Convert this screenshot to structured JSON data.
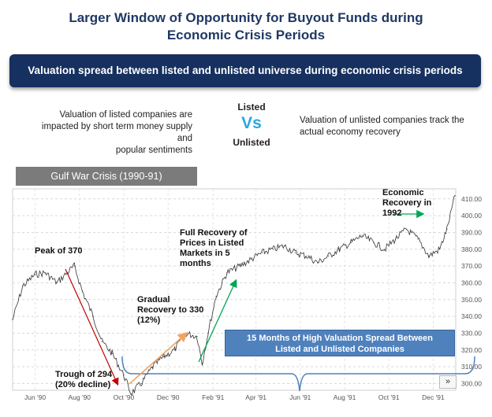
{
  "header": {
    "title_line1": "Larger Window of Opportunity for Buyout Funds during",
    "title_line2": "Economic Crisis Periods",
    "banner": "Valuation spread between listed and unlisted universe during economic crisis periods"
  },
  "compare": {
    "left_line1": "Valuation of listed companies are",
    "left_line2": "impacted by short term money supply and",
    "left_line3": "popular sentiments",
    "listed": "Listed",
    "vs": "Vs",
    "unlisted": "Unlisted",
    "right_line1": "Valuation of unlisted companies track the",
    "right_line2": "actual economy recovery"
  },
  "crisis_label": "Gulf War Crisis (1990-91)",
  "annotations": {
    "peak": "Peak of 370",
    "trough_l1": "Trough of 294",
    "trough_l2": "(20% decline)",
    "gradual_l1": "Gradual",
    "gradual_l2": "Recovery to 330",
    "gradual_l3": "(12%)",
    "full_l1": "Full Recovery of",
    "full_l2": "Prices in Listed",
    "full_l3": "Markets in 5",
    "full_l4": "months",
    "econ_l1": "Economic",
    "econ_l2": "Recovery in",
    "econ_l3": "1992",
    "spread_l1": "15 Months of High Valuation Spread Between",
    "spread_l2": "Listed and Unlisted Companies",
    "scroll": "»"
  },
  "chart_data": {
    "type": "line",
    "series": [
      {
        "x": [
          "1990-05-01",
          "1990-05-15",
          "1990-06-01",
          "1990-06-15",
          "1990-07-01",
          "1990-07-15",
          "1990-07-25",
          "1990-08-05",
          "1990-08-20",
          "1990-09-01",
          "1990-09-15",
          "1990-10-01",
          "1990-10-11",
          "1990-10-25",
          "1990-11-10",
          "1990-11-25",
          "1990-12-10",
          "1990-12-25",
          "1991-01-10",
          "1991-01-17",
          "1991-01-25",
          "1991-02-05",
          "1991-02-20",
          "1991-03-10",
          "1991-03-25",
          "1991-04-10",
          "1991-04-25",
          "1991-05-10",
          "1991-05-25",
          "1991-06-10",
          "1991-06-25",
          "1991-07-10",
          "1991-07-25",
          "1991-08-10",
          "1991-08-25",
          "1991-09-10",
          "1991-09-25",
          "1991-10-10",
          "1991-10-25",
          "1991-11-10",
          "1991-11-25",
          "1991-12-10",
          "1991-12-20",
          "1991-12-31"
        ],
        "values": [
          338,
          358,
          365,
          366,
          360,
          366,
          370,
          355,
          340,
          325,
          318,
          305,
          294,
          300,
          310,
          316,
          320,
          330,
          328,
          312,
          330,
          352,
          366,
          370,
          374,
          378,
          380,
          382,
          378,
          376,
          372,
          376,
          380,
          384,
          388,
          384,
          380,
          386,
          392,
          386,
          376,
          380,
          392,
          412
        ]
      }
    ],
    "ylim": [
      296,
      416
    ],
    "yticks": [
      "300.00",
      "310.00",
      "320.00",
      "330.00",
      "340.00",
      "350.00",
      "360.00",
      "370.00",
      "380.00",
      "390.00",
      "400.00",
      "410.00"
    ],
    "xticks": [
      "Jun '90",
      "Aug '90",
      "Oct '90",
      "Dec '90",
      "Feb '91",
      "Apr '91",
      "Jun '91",
      "Aug '91",
      "Oct '91",
      "Dec '91"
    ],
    "grid": true
  },
  "colors": {
    "title": "#1f3864",
    "banner": "#16305f",
    "vs": "#29a8e0",
    "decline_arrow": "#c00000",
    "gradual_arrow": "#f4a460",
    "full_arrow": "#00a651",
    "spread_box": "#4f81bd"
  }
}
